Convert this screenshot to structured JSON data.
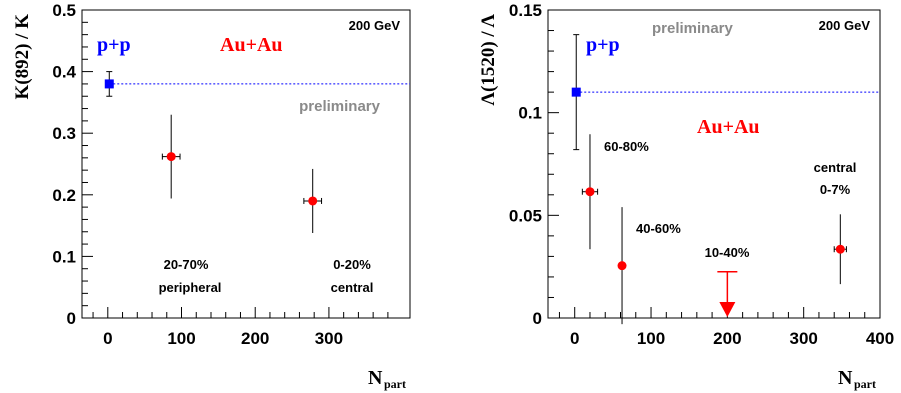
{
  "chart_data": [
    {
      "type": "scatter",
      "title": "",
      "ylabel": "K(892) / K",
      "xlabel_main": "N",
      "xlabel_sub": "part",
      "xlim": [
        -35,
        410
      ],
      "ylim": [
        0,
        0.5
      ],
      "xticks": [
        0,
        100,
        200,
        300
      ],
      "xtick_labels": [
        "0",
        "100",
        "200",
        "300"
      ],
      "yticks": [
        0,
        0.1,
        0.2,
        0.3,
        0.4,
        0.5
      ],
      "ytick_labels": [
        "0",
        "0.1",
        "0.2",
        "0.3",
        "0.4",
        "0.5"
      ],
      "energy_label": "200 GeV",
      "system_labels": {
        "pp": "p+p",
        "auau": "Au+Au"
      },
      "preliminary": "preliminary",
      "pp": {
        "x": 2,
        "y": 0.38,
        "yerr": [
          0.02,
          0.02
        ],
        "reference_line": true
      },
      "series": [
        {
          "name": "Au+Au",
          "points": [
            {
              "x": 86,
              "y": 0.262,
              "xerr": 12,
              "yerr": [
                0.068,
                0.068
              ],
              "label": [
                "20-70%",
                "peripheral"
              ]
            },
            {
              "x": 278,
              "y": 0.19,
              "xerr": 12,
              "yerr": [
                0.052,
                0.052
              ],
              "label": [
                "0-20%",
                "central"
              ]
            }
          ]
        }
      ],
      "colors": {
        "pp": "#0000ff",
        "auau": "#ff0000",
        "preliminary": "#8a8a8a"
      }
    },
    {
      "type": "scatter",
      "title": "",
      "ylabel": "Λ(1520) / Λ",
      "xlabel_main": "N",
      "xlabel_sub": "part",
      "xlim": [
        -35,
        400
      ],
      "ylim": [
        0,
        0.15
      ],
      "xticks": [
        0,
        100,
        200,
        300,
        400
      ],
      "xtick_labels": [
        "0",
        "100",
        "200",
        "300",
        "400"
      ],
      "yticks": [
        0,
        0.05,
        0.1,
        0.15
      ],
      "ytick_labels": [
        "0",
        "0.05",
        "0.1",
        "0.15"
      ],
      "energy_label": "200 GeV",
      "system_labels": {
        "pp": "p+p",
        "auau": "Au+Au"
      },
      "preliminary": "preliminary",
      "pp": {
        "x": 2,
        "y": 0.11,
        "yerr": [
          0.028,
          0.028
        ],
        "reference_line": true
      },
      "series": [
        {
          "name": "Au+Au",
          "points": [
            {
              "x": 20,
              "y": 0.0615,
              "xerr": 10,
              "yerr": [
                0.028,
                0.028
              ],
              "label": [
                "60-80%"
              ]
            },
            {
              "x": 62,
              "y": 0.0255,
              "xerr": 0,
              "yerr": [
                0.0285,
                0.0285
              ],
              "label": [
                "40-60%"
              ]
            },
            {
              "x": 348,
              "y": 0.0335,
              "xerr": 8,
              "yerr": [
                0.017,
                0.017
              ],
              "label": [
                "central",
                "0-7%"
              ]
            }
          ],
          "upper_limit": {
            "x": 200,
            "y": 0.0225,
            "label": [
              "10-40%"
            ]
          }
        }
      ],
      "colors": {
        "pp": "#0000ff",
        "auau": "#ff0000",
        "preliminary": "#8a8a8a"
      }
    }
  ]
}
